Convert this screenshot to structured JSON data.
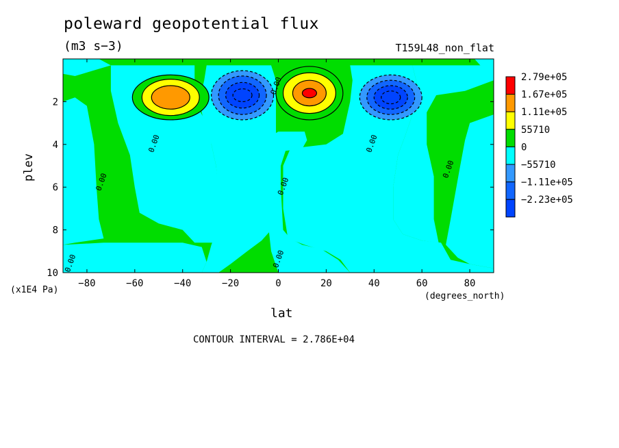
{
  "header": {
    "title": "poleward geopotential flux",
    "units": "(m3 s−3)",
    "experiment": "T159L48_non_flat"
  },
  "footer": {
    "contour_interval": "CONTOUR INTERVAL = 2.786E+04"
  },
  "chart_data": {
    "type": "heatmap",
    "title": "poleward geopotential flux",
    "subtitle": "(m3 s−3)",
    "xlabel": "lat",
    "xunits": "(degrees_north)",
    "ylabel": "plev",
    "yunits": "(x1E4 Pa)",
    "xlim": [
      -90,
      90
    ],
    "ylim": [
      10,
      0
    ],
    "x_ticks": [
      -80,
      -60,
      -40,
      -20,
      0,
      20,
      40,
      60,
      80
    ],
    "y_ticks": [
      2,
      4,
      6,
      8,
      10
    ],
    "x_tick_labels": [
      "−80",
      "−60",
      "−40",
      "−20",
      "0",
      "20",
      "40",
      "60",
      "80"
    ],
    "y_tick_labels": [
      "2",
      "4",
      "6",
      "8",
      "10"
    ],
    "contour_label": "0.00",
    "colorbar": {
      "levels": [
        {
          "label": "2.79e+05",
          "color": "#ff0000"
        },
        {
          "label": "1.67e+05",
          "color": "#ff9900"
        },
        {
          "label": "1.11e+05",
          "color": "#ffff00"
        },
        {
          "label": "55710",
          "color": "#00dd00"
        },
        {
          "label": "0",
          "color": "#00ffff"
        },
        {
          "label": "−55710",
          "color": "#3399ff"
        },
        {
          "label": "−1.11e+05",
          "color": "#1166ff"
        },
        {
          "label": "−2.23e+05",
          "color": "#0044ff"
        }
      ]
    },
    "centers": [
      {
        "lat": -45,
        "plev": 1.8,
        "value": 167000.0,
        "sign": "positive"
      },
      {
        "lat": -15,
        "plev": 1.7,
        "value": -223000.0,
        "sign": "negative"
      },
      {
        "lat": 13,
        "plev": 1.6,
        "value": 279000.0,
        "sign": "positive"
      },
      {
        "lat": 47,
        "plev": 1.8,
        "value": -223000.0,
        "sign": "negative"
      }
    ]
  }
}
